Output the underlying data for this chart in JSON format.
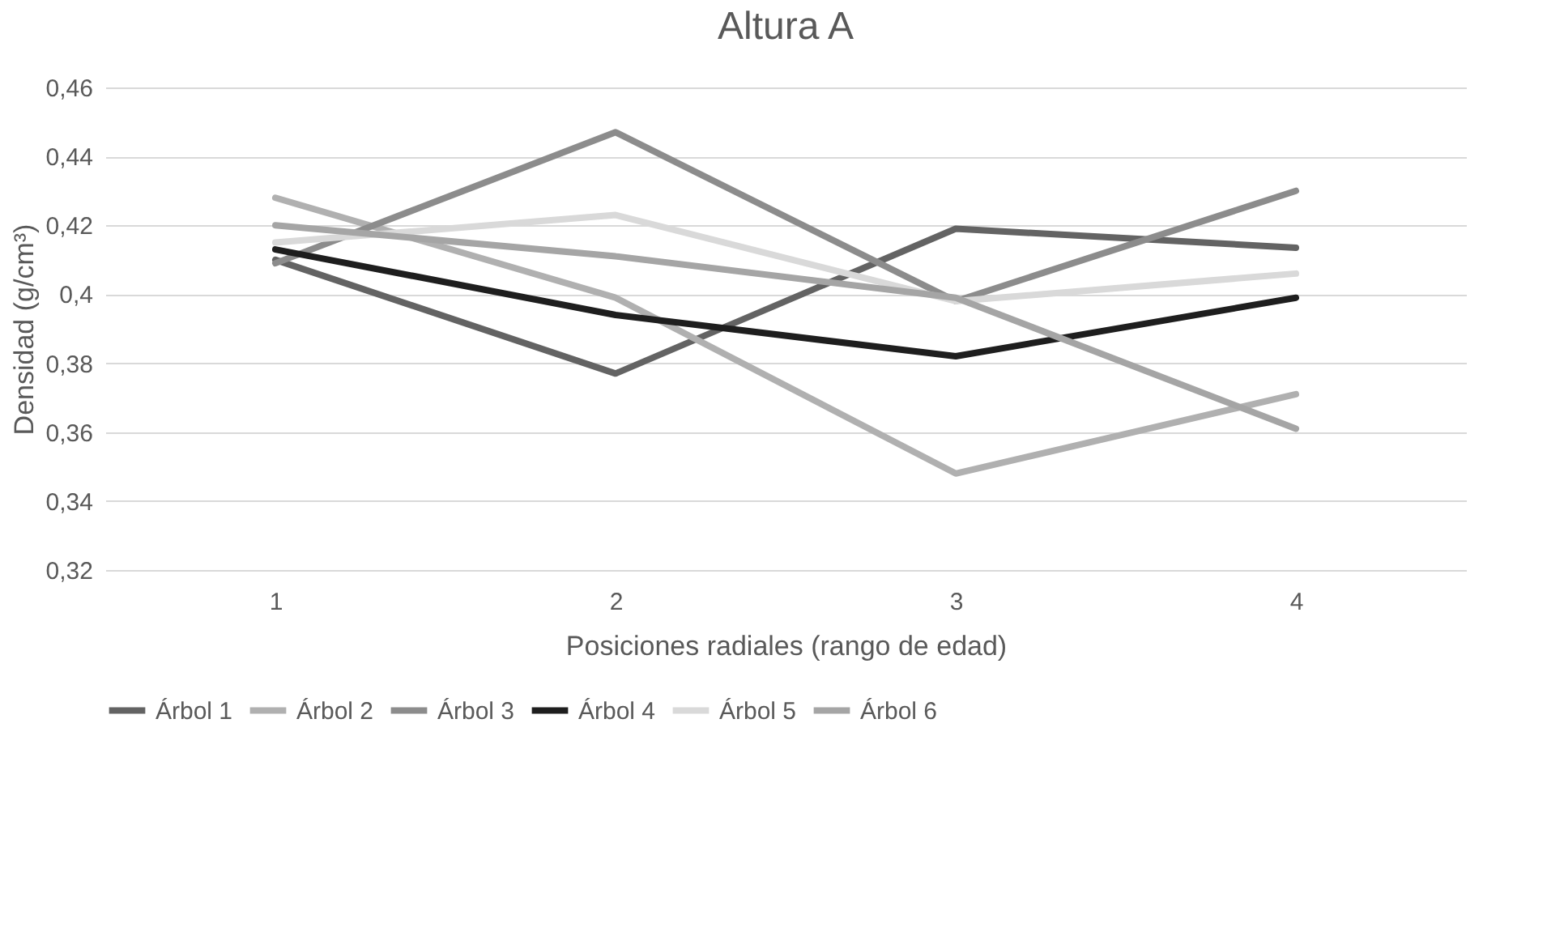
{
  "chart_data": {
    "type": "line",
    "title": "Altura A",
    "xlabel": "Posiciones radiales (rango de edad)",
    "ylabel": "Densidad (g/cm³)",
    "categories": [
      "1",
      "2",
      "3",
      "4"
    ],
    "series": [
      {
        "name": "Árbol 1",
        "color": "#636363",
        "values": [
          0.41,
          0.377,
          0.419,
          0.4135
        ]
      },
      {
        "name": "Árbol 2",
        "color": "#b0b0b0",
        "values": [
          0.428,
          0.399,
          0.348,
          0.371
        ]
      },
      {
        "name": "Árbol 3",
        "color": "#8c8c8c",
        "values": [
          0.409,
          0.447,
          0.398,
          0.43
        ]
      },
      {
        "name": "Árbol 4",
        "color": "#1e1e1e",
        "values": [
          0.413,
          0.394,
          0.382,
          0.399
        ]
      },
      {
        "name": "Árbol 5",
        "color": "#d9d9d9",
        "values": [
          0.415,
          0.423,
          0.398,
          0.406
        ]
      },
      {
        "name": "Árbol 6",
        "color": "#a5a5a5",
        "values": [
          0.42,
          0.411,
          0.399,
          0.361
        ]
      }
    ],
    "ylim": [
      0.32,
      0.46
    ],
    "yticks": [
      {
        "value": 0.32,
        "label": "0,32"
      },
      {
        "value": 0.34,
        "label": "0,34"
      },
      {
        "value": 0.36,
        "label": "0,36"
      },
      {
        "value": 0.38,
        "label": "0,38"
      },
      {
        "value": 0.4,
        "label": "0,4"
      },
      {
        "value": 0.42,
        "label": "0,42"
      },
      {
        "value": 0.44,
        "label": "0,44"
      },
      {
        "value": 0.46,
        "label": "0,46"
      }
    ],
    "grid": "y",
    "legend": "bottom",
    "marker": "none",
    "line_style": "solid"
  }
}
